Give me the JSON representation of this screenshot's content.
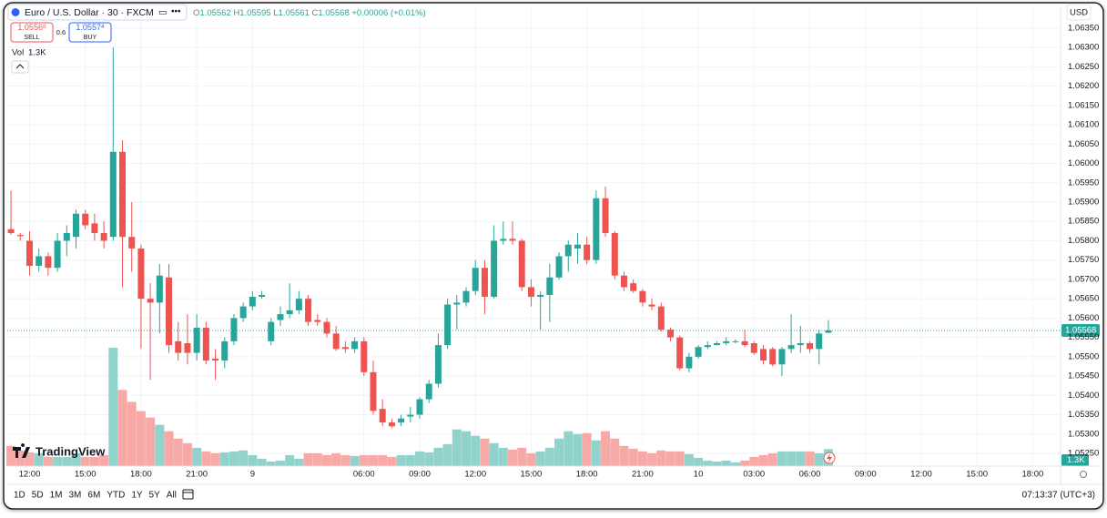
{
  "chart_data": {
    "type": "candlestick",
    "xticks": [
      {
        "value": 2,
        "label": "12:00"
      },
      {
        "value": 8,
        "label": "15:00"
      },
      {
        "value": 14,
        "label": "18:00"
      },
      {
        "value": 20,
        "label": "21:00"
      },
      {
        "value": 26,
        "label": "9"
      },
      {
        "value": 38,
        "label": "06:00"
      },
      {
        "value": 44,
        "label": "09:00"
      },
      {
        "value": 50,
        "label": "12:00"
      },
      {
        "value": 56,
        "label": "15:00"
      },
      {
        "value": 62,
        "label": "18:00"
      },
      {
        "value": 68,
        "label": "21:00"
      },
      {
        "value": 74,
        "label": "10"
      },
      {
        "value": 80,
        "label": "03:00"
      },
      {
        "value": 86,
        "label": "06:00"
      },
      {
        "value": 92,
        "label": "09:00"
      },
      {
        "value": 98,
        "label": "12:00"
      },
      {
        "value": 104,
        "label": "15:00"
      },
      {
        "value": 110,
        "label": "18:00"
      }
    ],
    "xlim": [
      -0.4,
      113
    ],
    "ylim": [
      1.05217,
      1.06404
    ],
    "yticks": [
      {
        "value": 1.0525,
        "label": "1.05250"
      },
      {
        "value": 1.053,
        "label": "1.05300"
      },
      {
        "value": 1.0535,
        "label": "1.05350"
      },
      {
        "value": 1.054,
        "label": "1.05400"
      },
      {
        "value": 1.0545,
        "label": "1.05450"
      },
      {
        "value": 1.055,
        "label": "1.05500"
      },
      {
        "value": 1.0555,
        "label": "1.05550"
      },
      {
        "value": 1.056,
        "label": "1.05600"
      },
      {
        "value": 1.0565,
        "label": "1.05650"
      },
      {
        "value": 1.057,
        "label": "1.05700"
      },
      {
        "value": 1.0575,
        "label": "1.05750"
      },
      {
        "value": 1.058,
        "label": "1.05800"
      },
      {
        "value": 1.0585,
        "label": "1.05850"
      },
      {
        "value": 1.059,
        "label": "1.05900"
      },
      {
        "value": 1.0595,
        "label": "1.05950"
      },
      {
        "value": 1.06,
        "label": "1.06000"
      },
      {
        "value": 1.0605,
        "label": "1.06050"
      },
      {
        "value": 1.061,
        "label": "1.06100"
      },
      {
        "value": 1.0615,
        "label": "1.06150"
      },
      {
        "value": 1.062,
        "label": "1.06200"
      },
      {
        "value": 1.0625,
        "label": "1.06250"
      },
      {
        "value": 1.063,
        "label": "1.06300"
      },
      {
        "value": 1.0635,
        "label": "1.06350"
      }
    ],
    "grid": true,
    "up_color": "#26a69a",
    "down_color": "#ef5350",
    "volume_up_color": "#92d2cc",
    "volume_down_color": "#f7a9a7",
    "volume_lim": [
      0,
      35000
    ],
    "volume_label": "1.3K",
    "open": [
      1.0583,
      1.05815,
      1.058,
      1.05735,
      1.0576,
      1.0573,
      1.058,
      1.0581,
      1.0587,
      1.05845,
      1.0582,
      1.0581,
      1.0603,
      1.0581,
      1.0578,
      1.0565,
      1.0564,
      1.05705,
      1.0554,
      1.05535,
      1.0551,
      1.05575,
      1.05495,
      1.0549,
      1.0554,
      1.056,
      1.0563,
      1.05655,
      1.0554,
      1.05595,
      1.0561,
      1.0562,
      1.0565,
      1.05595,
      1.0559,
      1.0556,
      1.05525,
      1.0552,
      1.0554,
      1.0546,
      1.05365,
      1.0533,
      1.0533,
      1.05345,
      1.0535,
      1.0539,
      1.0543,
      1.0553,
      1.05635,
      1.0564,
      1.0567,
      1.0573,
      1.05655,
      1.058,
      1.05805,
      1.058,
      1.0568,
      1.05655,
      1.0566,
      1.05705,
      1.0576,
      1.0578,
      1.0579,
      1.0575,
      1.0591,
      1.0582,
      1.0571,
      1.0569,
      1.0567,
      1.05635,
      1.0563,
      1.0557,
      1.0555,
      1.0547,
      1.055,
      1.05525,
      1.0553,
      1.05535,
      1.0554,
      1.0554,
      1.05535,
      1.0552,
      1.0552,
      1.0548,
      1.0552,
      1.0553,
      1.05535,
      1.0552,
      1.05562
    ],
    "high": [
      1.0593,
      1.0582,
      1.05825,
      1.0578,
      1.0577,
      1.0582,
      1.0584,
      1.0588,
      1.0588,
      1.0587,
      1.0585,
      1.063,
      1.0606,
      1.059,
      1.0579,
      1.0569,
      1.0574,
      1.0574,
      1.0559,
      1.0561,
      1.0561,
      1.0559,
      1.0552,
      1.0555,
      1.0561,
      1.0564,
      1.0567,
      1.0567,
      1.056,
      1.0563,
      1.0569,
      1.0567,
      1.0566,
      1.0561,
      1.056,
      1.0558,
      1.0554,
      1.0555,
      1.0555,
      1.0549,
      1.0539,
      1.0534,
      1.0535,
      1.0537,
      1.05395,
      1.0544,
      1.0556,
      1.0565,
      1.0566,
      1.0568,
      1.0575,
      1.0575,
      1.0584,
      1.0585,
      1.0585,
      1.05805,
      1.057,
      1.0567,
      1.0574,
      1.0577,
      1.058,
      1.0582,
      1.0581,
      1.0593,
      1.0594,
      1.05825,
      1.0572,
      1.057,
      1.05675,
      1.0565,
      1.0564,
      1.05575,
      1.05555,
      1.0551,
      1.0553,
      1.0554,
      1.0554,
      1.0555,
      1.05545,
      1.0557,
      1.0554,
      1.0553,
      1.05525,
      1.05525,
      1.0561,
      1.0558,
      1.0554,
      1.0557,
      1.05595
    ],
    "low": [
      1.05815,
      1.058,
      1.0571,
      1.0572,
      1.0571,
      1.0572,
      1.0576,
      1.0578,
      1.0583,
      1.058,
      1.0578,
      1.058,
      1.0568,
      1.0572,
      1.0552,
      1.0544,
      1.0556,
      1.0551,
      1.0549,
      1.0548,
      1.0549,
      1.0548,
      1.0544,
      1.0547,
      1.0553,
      1.0559,
      1.0562,
      1.0565,
      1.0553,
      1.0558,
      1.056,
      1.0561,
      1.0558,
      1.0558,
      1.0555,
      1.05515,
      1.0551,
      1.0551,
      1.0545,
      1.0535,
      1.0532,
      1.05315,
      1.0532,
      1.0533,
      1.0534,
      1.0538,
      1.0542,
      1.0552,
      1.0557,
      1.0563,
      1.0566,
      1.0561,
      1.0565,
      1.0579,
      1.0579,
      1.0567,
      1.0563,
      1.0557,
      1.0559,
      1.057,
      1.0572,
      1.0574,
      1.0574,
      1.0574,
      1.0581,
      1.057,
      1.0567,
      1.05665,
      1.0563,
      1.0562,
      1.05565,
      1.0554,
      1.05465,
      1.0546,
      1.05495,
      1.0552,
      1.0553,
      1.0553,
      1.05535,
      1.05525,
      1.05505,
      1.0548,
      1.05475,
      1.0545,
      1.0551,
      1.0551,
      1.0551,
      1.0548,
      1.05561
    ],
    "close": [
      1.0582,
      1.05812,
      1.05735,
      1.0576,
      1.0573,
      1.058,
      1.0582,
      1.0587,
      1.0584,
      1.0582,
      1.058,
      1.0603,
      1.0581,
      1.0578,
      1.0565,
      1.0564,
      1.0571,
      1.0553,
      1.0551,
      1.0551,
      1.05575,
      1.0549,
      1.0549,
      1.0554,
      1.056,
      1.0563,
      1.05655,
      1.0566,
      1.0559,
      1.0561,
      1.0562,
      1.0565,
      1.0559,
      1.0559,
      1.0556,
      1.0552,
      1.0552,
      1.0554,
      1.0546,
      1.0536,
      1.0533,
      1.0532,
      1.0534,
      1.0535,
      1.0539,
      1.0543,
      1.0553,
      1.05635,
      1.0564,
      1.0567,
      1.0573,
      1.05655,
      1.058,
      1.05805,
      1.058,
      1.0568,
      1.05655,
      1.0566,
      1.05705,
      1.0576,
      1.0579,
      1.0579,
      1.0575,
      1.0591,
      1.0582,
      1.0571,
      1.0568,
      1.0567,
      1.0564,
      1.0563,
      1.0557,
      1.0555,
      1.0547,
      1.055,
      1.05525,
      1.0553,
      1.05535,
      1.0554,
      1.0554,
      1.0553,
      1.0551,
      1.0549,
      1.0548,
      1.0552,
      1.0553,
      1.05535,
      1.0552,
      1.0556,
      1.05568
    ],
    "volume": [
      1540,
      1190,
      1050,
      980,
      700,
      700,
      700,
      980,
      700,
      700,
      840,
      9030,
      5810,
      4900,
      4200,
      3710,
      3150,
      2660,
      2100,
      1750,
      1400,
      1120,
      980,
      1050,
      1120,
      1190,
      840,
      560,
      350,
      420,
      840,
      560,
      980,
      980,
      840,
      980,
      840,
      770,
      840,
      840,
      840,
      700,
      840,
      840,
      1120,
      1050,
      1400,
      1680,
      2800,
      2660,
      2310,
      2100,
      1750,
      1400,
      1260,
      1400,
      980,
      1120,
      1400,
      2100,
      2660,
      2450,
      2520,
      1960,
      2660,
      2100,
      1540,
      1330,
      1120,
      980,
      1190,
      1120,
      1120,
      910,
      630,
      420,
      350,
      420,
      280,
      420,
      700,
      840,
      980,
      1120,
      1120,
      1120,
      1120,
      980,
      1300
    ]
  },
  "ui": {
    "symbol": "Euro / U.S. Dollar · 30 · FXCM",
    "ohlc_letters": [
      "O",
      "H",
      "L",
      "C"
    ],
    "change": "+0.00006 (+0.01%)",
    "sell_main": "1.0556",
    "sell_pip": "8",
    "sell_label": "SELL",
    "spread": "0.6",
    "buy_main": "1.0557",
    "buy_pip": "4",
    "buy_label": "BUY",
    "volume_title": "Vol",
    "currency": "USD",
    "logo": "TradingView",
    "ranges": [
      "1D",
      "5D",
      "1M",
      "3M",
      "6M",
      "YTD",
      "1Y",
      "5Y",
      "All"
    ],
    "clock": "07:13:37 (UTC+3)"
  }
}
